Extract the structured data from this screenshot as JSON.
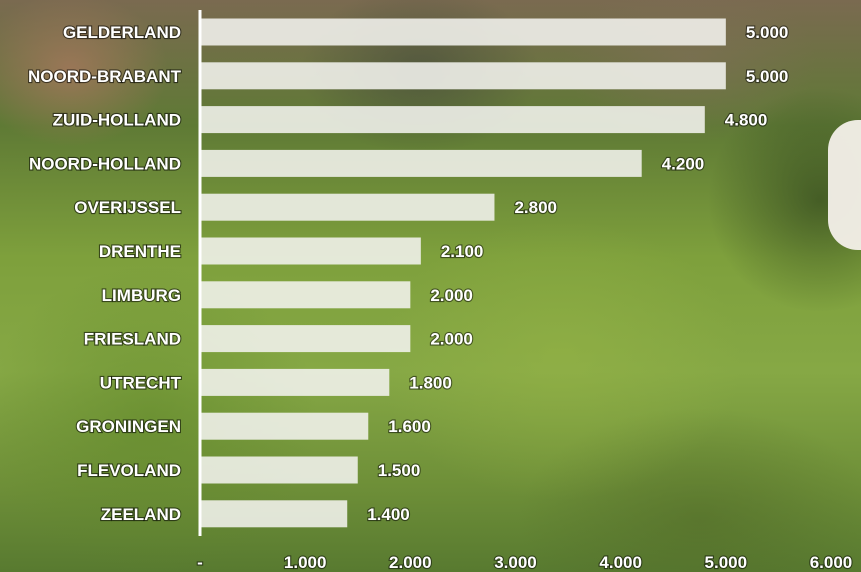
{
  "chart_data": {
    "type": "bar",
    "orientation": "horizontal",
    "categories": [
      "GELDERLAND",
      "NOORD-BRABANT",
      "ZUID-HOLLAND",
      "NOORD-HOLLAND",
      "OVERIJSSEL",
      "DRENTHE",
      "LIMBURG",
      "FRIESLAND",
      "UTRECHT",
      "GRONINGEN",
      "FLEVOLAND",
      "ZEELAND"
    ],
    "values": [
      5000,
      5000,
      4800,
      4200,
      2800,
      2100,
      2000,
      2000,
      1800,
      1600,
      1500,
      1400
    ],
    "value_labels": [
      "5.000",
      "5.000",
      "4.800",
      "4.200",
      "2.800",
      "2.100",
      "2.000",
      "2.000",
      "1.800",
      "1.600",
      "1.500",
      "1.400"
    ],
    "xlim": [
      0,
      6000
    ],
    "x_ticks": [
      0,
      1000,
      2000,
      3000,
      4000,
      5000,
      6000
    ],
    "x_tick_labels": [
      "-",
      "1.000",
      "2.000",
      "3.000",
      "4.000",
      "5.000",
      "6.000"
    ],
    "grid": false,
    "legend": "none",
    "title": "",
    "xlabel": "",
    "ylabel": "",
    "colors": {
      "bar": "#f2f2ee",
      "text": "#ffffff"
    }
  }
}
